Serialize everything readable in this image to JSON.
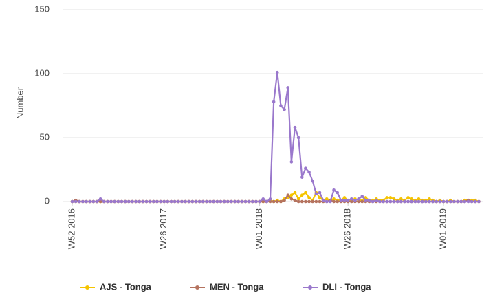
{
  "chart_data": {
    "type": "line",
    "y_label": "Number",
    "categories": [
      "W52 2016",
      null,
      null,
      null,
      null,
      null,
      null,
      null,
      null,
      null,
      null,
      null,
      null,
      null,
      null,
      null,
      null,
      null,
      null,
      null,
      null,
      null,
      null,
      null,
      null,
      null,
      "W26 2017",
      null,
      null,
      null,
      null,
      null,
      null,
      null,
      null,
      null,
      null,
      null,
      null,
      null,
      null,
      null,
      null,
      null,
      null,
      null,
      null,
      null,
      null,
      null,
      null,
      null,
      null,
      "W01 2018",
      null,
      null,
      null,
      null,
      null,
      null,
      null,
      null,
      null,
      null,
      null,
      null,
      null,
      null,
      null,
      null,
      null,
      null,
      null,
      null,
      null,
      null,
      null,
      null,
      "W26 2018",
      null,
      null,
      null,
      null,
      null,
      null,
      null,
      null,
      null,
      null,
      null,
      null,
      null,
      null,
      null,
      null,
      null,
      null,
      null,
      null,
      null,
      null,
      null,
      null,
      null,
      null,
      "W01 2019",
      null,
      null,
      null,
      null,
      null,
      null,
      null,
      null,
      null,
      null
    ],
    "series": [
      {
        "name": "AJS - Tonga",
        "color": "#f5c400",
        "values": [
          0,
          0,
          0,
          0,
          0,
          0,
          0,
          0,
          0,
          0,
          0,
          0,
          0,
          0,
          0,
          0,
          0,
          0,
          0,
          0,
          0,
          0,
          0,
          0,
          0,
          0,
          0,
          0,
          0,
          0,
          0,
          0,
          0,
          0,
          0,
          0,
          0,
          0,
          0,
          0,
          0,
          0,
          0,
          0,
          0,
          0,
          0,
          0,
          0,
          0,
          0,
          0,
          0,
          0,
          0,
          0,
          1,
          0,
          1,
          0,
          2,
          3,
          5,
          7,
          2,
          5,
          7,
          3,
          1,
          7,
          3,
          1,
          2,
          1,
          2,
          1,
          1,
          3,
          1,
          1,
          2,
          1,
          1,
          3,
          1,
          1,
          2,
          1,
          1,
          3,
          3,
          2,
          1,
          2,
          1,
          3,
          2,
          1,
          2,
          1,
          1,
          2,
          1,
          0,
          1,
          0,
          0,
          1,
          0,
          0,
          0,
          1,
          1,
          1,
          1,
          0
        ]
      },
      {
        "name": "MEN - Tonga",
        "color": "#b5735f",
        "values": [
          0,
          1,
          0,
          0,
          0,
          0,
          0,
          0,
          0,
          0,
          0,
          0,
          0,
          0,
          0,
          0,
          0,
          0,
          0,
          0,
          0,
          0,
          0,
          0,
          0,
          0,
          0,
          0,
          0,
          0,
          0,
          0,
          0,
          0,
          0,
          0,
          0,
          0,
          0,
          0,
          0,
          0,
          0,
          0,
          0,
          0,
          0,
          0,
          0,
          0,
          0,
          0,
          0,
          0,
          0,
          0,
          0,
          0,
          0,
          0,
          1,
          5,
          2,
          1,
          0,
          0,
          0,
          0,
          0,
          0,
          0,
          0,
          0,
          1,
          0,
          0,
          0,
          0,
          0,
          0,
          0,
          0,
          0,
          0,
          0,
          0,
          0,
          0,
          0,
          0,
          0,
          0,
          0,
          0,
          0,
          0,
          0,
          0,
          0,
          0,
          0,
          0,
          0,
          0,
          0,
          0,
          0,
          0,
          0,
          0,
          0,
          0,
          1,
          0,
          0,
          0
        ]
      },
      {
        "name": "DLI - Tonga",
        "color": "#9a78cc",
        "values": [
          0,
          0,
          0,
          0,
          0,
          0,
          0,
          0,
          2,
          0,
          0,
          0,
          0,
          0,
          0,
          0,
          0,
          0,
          0,
          0,
          0,
          0,
          0,
          0,
          0,
          0,
          0,
          0,
          0,
          0,
          0,
          0,
          0,
          0,
          0,
          0,
          0,
          0,
          0,
          0,
          0,
          0,
          0,
          0,
          0,
          0,
          0,
          0,
          0,
          0,
          0,
          0,
          0,
          0,
          2,
          0,
          2,
          78,
          101,
          75,
          72,
          89,
          31,
          58,
          50,
          19,
          26,
          23,
          16,
          6,
          7,
          1,
          0,
          0,
          9,
          7,
          1,
          1,
          1,
          2,
          1,
          2,
          4,
          1,
          1,
          0,
          1,
          0,
          0,
          0,
          0,
          0,
          0,
          0,
          0,
          0,
          0,
          0,
          0,
          0,
          0,
          0,
          0,
          0,
          0,
          0,
          0,
          0,
          0,
          0,
          0,
          0,
          0,
          0,
          0,
          0
        ]
      }
    ],
    "ylim": [
      0,
      150
    ],
    "yticks": [
      0,
      50,
      100,
      150
    ],
    "grid": true,
    "legend": "bottom"
  }
}
